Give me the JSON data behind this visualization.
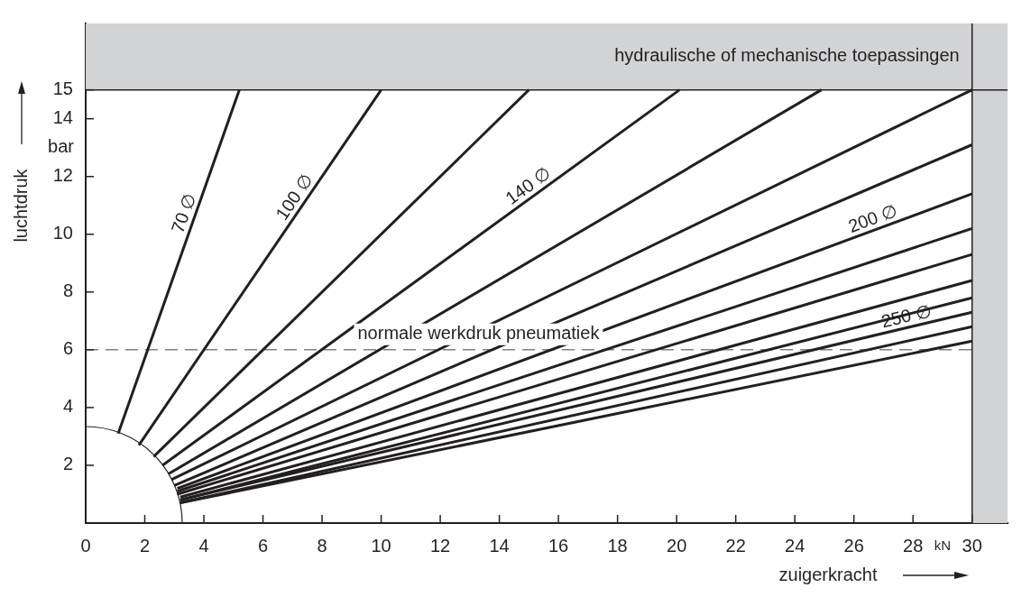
{
  "chart_data": {
    "type": "line",
    "xlabel": "zuigerkracht",
    "ylabel": "luchtdruk",
    "marker": "none",
    "line_style": "solid",
    "legend": false,
    "xlim": [
      0,
      31.2
    ],
    "ylim": [
      0,
      17.3
    ],
    "xticks": [
      0,
      2,
      4,
      6,
      8,
      10,
      12,
      14,
      16,
      18,
      20,
      22,
      24,
      26,
      28,
      30
    ],
    "yticks": [
      2,
      4,
      6,
      8,
      10,
      12,
      14,
      15
    ],
    "series": [
      {
        "name": "70 ∅",
        "color": "#231f20",
        "x": [
          1.1,
          5.2
        ],
        "values": [
          3.1,
          15
        ]
      },
      {
        "name": "100 ∅",
        "color": "#231f20",
        "x": [
          1.8,
          10.0
        ],
        "values": [
          2.7,
          15
        ]
      },
      {
        "color": "#231f20",
        "x": [
          2.3,
          15.0
        ],
        "values": [
          2.3,
          15
        ]
      },
      {
        "name": "140 ∅",
        "color": "#231f20",
        "x": [
          2.6,
          20.1
        ],
        "values": [
          2.0,
          15
        ]
      },
      {
        "color": "#231f20",
        "x": [
          2.8,
          24.9
        ],
        "values": [
          1.7,
          15
        ]
      },
      {
        "color": "#231f20",
        "x": [
          2.9,
          30
        ],
        "values": [
          1.5,
          15
        ]
      },
      {
        "color": "#231f20",
        "x": [
          3.0,
          30
        ],
        "values": [
          1.3,
          13.1
        ]
      },
      {
        "name": "200 ∅",
        "color": "#231f20",
        "x": [
          3.1,
          30
        ],
        "values": [
          1.2,
          11.4
        ]
      },
      {
        "color": "#231f20",
        "x": [
          3.1,
          30
        ],
        "values": [
          1.1,
          10.2
        ]
      },
      {
        "color": "#231f20",
        "x": [
          3.1,
          30
        ],
        "values": [
          1.0,
          9.3
        ]
      },
      {
        "color": "#231f20",
        "x": [
          3.2,
          30
        ],
        "values": [
          0.9,
          8.4
        ]
      },
      {
        "color": "#231f20",
        "x": [
          3.2,
          30
        ],
        "values": [
          0.8,
          7.8
        ]
      },
      {
        "name": "250 ∅",
        "color": "#231f20",
        "x": [
          3.2,
          30
        ],
        "values": [
          0.8,
          7.3
        ]
      },
      {
        "color": "#231f20",
        "x": [
          3.2,
          30
        ],
        "values": [
          0.7,
          6.8
        ]
      },
      {
        "color": "#231f20",
        "x": [
          3.2,
          30
        ],
        "values": [
          0.7,
          6.3
        ]
      }
    ],
    "ref_lines": [
      {
        "axis": "y",
        "value": 6,
        "label": "normale werkdruk pneumatiek",
        "color": "#808080",
        "line_style": "dashed"
      }
    ],
    "bands": [
      {
        "axis": "y",
        "from": 15,
        "to": 17.3,
        "label": "hydraulische of mechanische toepassingen",
        "color": "#d1d3d4"
      },
      {
        "axis": "x",
        "from": 30,
        "to": 31.2,
        "color": "#d1d3d4"
      }
    ],
    "annotations": [
      "bar",
      "kN"
    ]
  }
}
